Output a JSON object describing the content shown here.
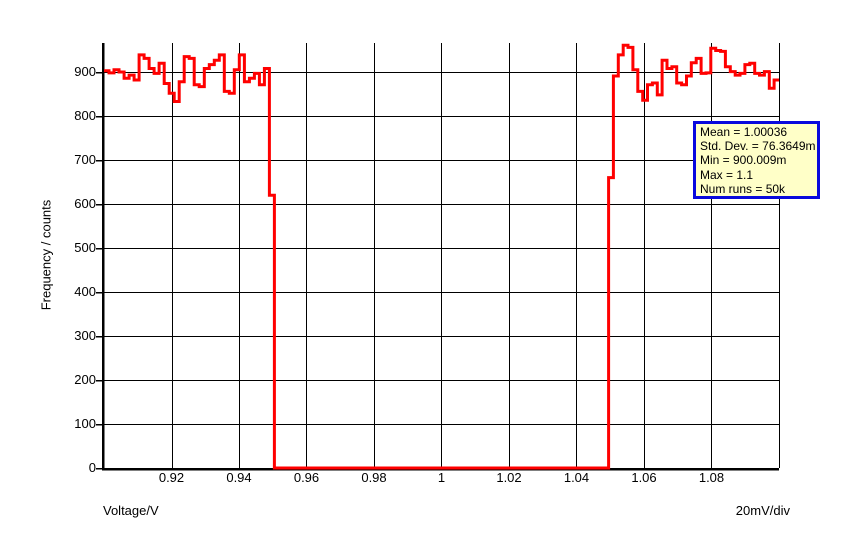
{
  "chart_data": {
    "type": "histogram-step",
    "title": "",
    "xlabel": "Voltage/V",
    "ylabel": "Frequency / counts",
    "x_div_label": "20mV/div",
    "xlim": [
      0.9,
      1.1
    ],
    "ylim": [
      0,
      966
    ],
    "grid": true,
    "line_color": "#ff0000",
    "axis_color": "#000000",
    "grid_color": "#000000",
    "x_grid_values": [
      0.92,
      0.94,
      0.96,
      0.98,
      1.0,
      1.02,
      1.04,
      1.06,
      1.08,
      1.1
    ],
    "x_ticks": [
      {
        "value": 0.92,
        "label": "0.92"
      },
      {
        "value": 0.94,
        "label": "0.94"
      },
      {
        "value": 0.96,
        "label": "0.96"
      },
      {
        "value": 0.98,
        "label": "0.98"
      },
      {
        "value": 1.0,
        "label": "1"
      },
      {
        "value": 1.02,
        "label": "1.02"
      },
      {
        "value": 1.04,
        "label": "1.04"
      },
      {
        "value": 1.06,
        "label": "1.06"
      },
      {
        "value": 1.08,
        "label": "1.08"
      }
    ],
    "y_ticks": [
      {
        "value": 0,
        "label": "0"
      },
      {
        "value": 100,
        "label": "100"
      },
      {
        "value": 200,
        "label": "200"
      },
      {
        "value": 300,
        "label": "300"
      },
      {
        "value": 400,
        "label": "400"
      },
      {
        "value": 500,
        "label": "500"
      },
      {
        "value": 600,
        "label": "600"
      },
      {
        "value": 700,
        "label": "700"
      },
      {
        "value": 800,
        "label": "800"
      },
      {
        "value": 900,
        "label": "900"
      }
    ],
    "segments": [
      {
        "x_start": 0.9,
        "bin_width": 0.0014853,
        "counts": [
          903,
          898,
          905,
          900,
          886,
          893,
          882,
          939,
          931,
          908,
          897,
          920,
          874,
          852,
          833,
          878,
          935,
          931,
          871,
          867,
          908,
          917,
          927,
          939,
          856,
          852,
          905,
          939,
          878,
          886,
          897,
          871,
          908,
          620
        ]
      },
      {
        "x_start": 0.9505,
        "bin_width": 0.099,
        "counts": [
          0
        ]
      },
      {
        "x_start": 1.0495,
        "bin_width": 0.0014429,
        "counts": [
          660,
          891,
          939,
          961,
          956,
          905,
          856,
          836,
          871,
          875,
          848,
          927,
          908,
          912,
          875,
          871,
          891,
          921,
          931,
          897,
          898,
          954,
          949,
          947,
          912,
          901,
          893,
          897,
          917,
          920,
          897,
          893,
          901,
          863,
          882
        ]
      }
    ]
  },
  "stats_box": {
    "bg_color": "#ffffc8",
    "border_color": "#0909dd",
    "lines": [
      "Mean = 1.00036",
      "Std. Dev. = 76.3649m",
      "Min = 900.009m",
      "Max = 1.1",
      "Num runs = 50k"
    ]
  }
}
